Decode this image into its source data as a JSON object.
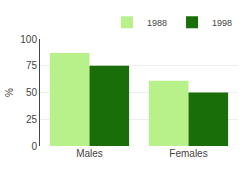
{
  "chart_data": {
    "type": "bar",
    "categories": [
      "Males",
      "Females"
    ],
    "series": [
      {
        "name": "1988",
        "color": "#b8f08a",
        "values": [
          87,
          61
        ]
      },
      {
        "name": "1998",
        "color": "#1a6e0a",
        "values": [
          75,
          50
        ]
      }
    ],
    "ylabel": "%",
    "ylim": [
      0,
      100
    ],
    "yticks": [
      0,
      25,
      50,
      75,
      100
    ],
    "grid": true,
    "legend": "upper right"
  }
}
